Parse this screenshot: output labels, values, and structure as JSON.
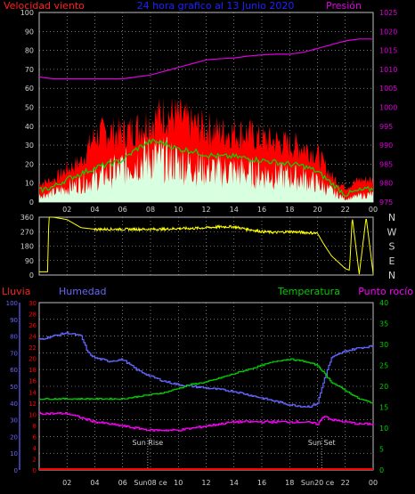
{
  "header": {
    "left_title": "Velocidad viento",
    "center_title": "24 hora grafico al 13 Junio 2020",
    "right_title": "Presión"
  },
  "colors": {
    "background": "#000000",
    "grid": "#c0c0c0",
    "wind_gust": "#ff0000",
    "wind_avg": "#00dd00",
    "wind_speed": "#d8ffe0",
    "pressure": "#dd00dd",
    "direction": "#ffff00",
    "rain": "#ff0000",
    "humidity": "#6666ff",
    "temperature": "#00cc00",
    "dewpoint": "#ff00ff",
    "wind_label": "#ff2020",
    "title_blue": "#2020ff",
    "axis_text": "#d0d0d0"
  },
  "x_ticks": [
    "02",
    "04",
    "06",
    "08",
    "10",
    "12",
    "14",
    "16",
    "18",
    "20",
    "22",
    "00"
  ],
  "panel2": {
    "compass": [
      "N",
      "W",
      "S",
      "E",
      "N"
    ]
  },
  "panel3": {
    "rain_label": "Lluvia",
    "humidity_label": "Humedad",
    "temperature_label": "Temperatura",
    "dewpoint_label": "Punto rocío",
    "sunrise_label": "Sun Rise",
    "sunset_label": "Sun Set",
    "sunrise_tick_label": "Sun08 ce",
    "sunset_tick_label": "Sun20 ce"
  },
  "chart_data": [
    {
      "type": "line",
      "title": "24 hora grafico al 13 Junio 2020",
      "x_unit": "hours (24h window ending 00:00)",
      "y_left": {
        "label": "Velocidad viento",
        "ticks": [
          0,
          10,
          20,
          30,
          40,
          50,
          60,
          70,
          80,
          90,
          100
        ],
        "ylim": [
          0,
          100
        ]
      },
      "y_right": {
        "label": "Presión",
        "ticks": [
          975,
          980,
          985,
          990,
          995,
          1000,
          1005,
          1010,
          1015,
          1020,
          1025
        ],
        "ylim": [
          975,
          1025
        ]
      },
      "series": [
        {
          "key": "gust",
          "axis": "left",
          "x": [
            0,
            1,
            2,
            3,
            4,
            5,
            6,
            7,
            8,
            9,
            10,
            11,
            12,
            13,
            14,
            15,
            16,
            17,
            18,
            19,
            20,
            21,
            22,
            23,
            24
          ],
          "values": [
            10,
            12,
            18,
            22,
            36,
            38,
            37,
            40,
            44,
            48,
            46,
            42,
            40,
            38,
            38,
            37,
            34,
            33,
            31,
            30,
            26,
            14,
            8,
            12,
            12
          ]
        },
        {
          "key": "average",
          "axis": "left",
          "x": [
            0,
            1,
            2,
            3,
            4,
            5,
            6,
            7,
            8,
            9,
            10,
            11,
            12,
            13,
            14,
            15,
            16,
            17,
            18,
            19,
            20,
            21,
            22,
            23,
            24
          ],
          "values": [
            6,
            8,
            12,
            15,
            18,
            20,
            22,
            28,
            32,
            31,
            28,
            27,
            25,
            24,
            24,
            23,
            22,
            21,
            20,
            19,
            16,
            10,
            4,
            6,
            7
          ]
        },
        {
          "key": "speed",
          "axis": "left",
          "x": [
            0,
            1,
            2,
            3,
            4,
            5,
            6,
            7,
            8,
            9,
            10,
            11,
            12,
            13,
            14,
            15,
            16,
            17,
            18,
            19,
            20,
            21,
            22,
            23,
            24
          ],
          "values": [
            4,
            6,
            9,
            12,
            15,
            18,
            22,
            26,
            29,
            27,
            25,
            23,
            21,
            20,
            20,
            19,
            18,
            17,
            16,
            15,
            12,
            7,
            2,
            4,
            5
          ]
        },
        {
          "key": "pressure",
          "axis": "right",
          "x": [
            0,
            1,
            2,
            3,
            4,
            5,
            6,
            7,
            8,
            9,
            10,
            11,
            12,
            13,
            14,
            15,
            16,
            17,
            18,
            19,
            20,
            21,
            22,
            23,
            24
          ],
          "values": [
            1008,
            1007.5,
            1007.5,
            1007.5,
            1007.5,
            1007.5,
            1007.5,
            1008,
            1008.5,
            1009.5,
            1010.5,
            1011.5,
            1012.5,
            1012.8,
            1013,
            1013.5,
            1013.8,
            1014,
            1014,
            1014.5,
            1015.5,
            1016.5,
            1017.5,
            1018,
            1018
          ]
        }
      ]
    },
    {
      "type": "line",
      "y_left": {
        "ticks": [
          0,
          90,
          180,
          270,
          360
        ],
        "ylim": [
          0,
          360
        ]
      },
      "series": [
        {
          "key": "direction",
          "x": [
            0,
            0.6,
            0.7,
            1,
            2,
            3,
            4,
            5,
            6,
            7,
            8,
            9,
            10,
            11,
            12,
            13,
            14,
            15,
            16,
            17,
            18,
            19,
            20,
            20.4,
            21,
            22,
            22.3,
            22.5,
            23,
            23.5,
            24
          ],
          "values": [
            20,
            20,
            360,
            360,
            345,
            295,
            285,
            285,
            285,
            285,
            285,
            285,
            290,
            290,
            295,
            300,
            300,
            285,
            270,
            265,
            270,
            265,
            260,
            200,
            120,
            40,
            30,
            360,
            5,
            360,
            10
          ]
        }
      ]
    },
    {
      "type": "line",
      "axes": {
        "rain": {
          "label": "Lluvia",
          "ticks": [
            0,
            2,
            4,
            6,
            8,
            10,
            12,
            14,
            16,
            18,
            20,
            22,
            24,
            26,
            28,
            30
          ],
          "ylim": [
            0,
            30
          ]
        },
        "humidity": {
          "label": "Humedad",
          "ticks": [
            0,
            10,
            20,
            30,
            40,
            50,
            60,
            70,
            80,
            90,
            100
          ],
          "ylim": [
            0,
            100
          ]
        },
        "temperature": {
          "label": "Temperatura",
          "ticks": [
            0,
            5,
            10,
            15,
            20,
            25,
            30,
            35,
            40
          ],
          "ylim": [
            0,
            40
          ]
        }
      },
      "series": [
        {
          "key": "rain",
          "axis": "rain",
          "x": [
            0,
            24
          ],
          "values": [
            0,
            0
          ]
        },
        {
          "key": "humidity",
          "axis": "humidity",
          "x": [
            0,
            1,
            2,
            3,
            3.5,
            4,
            5,
            6,
            7,
            8,
            9,
            10,
            11,
            12,
            13,
            14,
            15,
            16,
            17,
            18,
            19,
            19.5,
            20,
            20.5,
            21,
            22,
            23,
            24
          ],
          "values": [
            78,
            80,
            82,
            80,
            70,
            67,
            65,
            66,
            60,
            56,
            53,
            51,
            50,
            49,
            48,
            47,
            45,
            43,
            41,
            39,
            38,
            38,
            40,
            55,
            67,
            71,
            73,
            74
          ]
        },
        {
          "key": "temperature",
          "axis": "temperature",
          "x": [
            0,
            1,
            2,
            3,
            4,
            5,
            6,
            7,
            8,
            9,
            10,
            11,
            12,
            13,
            14,
            15,
            16,
            17,
            18,
            19,
            20,
            21,
            22,
            23,
            24
          ],
          "values": [
            17,
            17,
            17,
            17,
            17,
            17,
            17,
            17.5,
            18,
            18.5,
            19.5,
            20.5,
            21,
            22,
            23,
            24,
            25,
            26,
            26.5,
            26,
            25,
            21,
            19,
            17,
            16
          ]
        },
        {
          "key": "dewpoint",
          "axis": "temperature",
          "x": [
            0,
            1,
            2,
            3,
            4,
            5,
            6,
            7,
            8,
            9,
            10,
            11,
            12,
            13,
            14,
            15,
            16,
            17,
            18,
            19,
            20,
            20.5,
            21,
            22,
            23,
            24
          ],
          "values": [
            13.5,
            13.5,
            13.5,
            12.5,
            11.5,
            11,
            10.5,
            10,
            9.5,
            9.5,
            9.5,
            10,
            10.5,
            11,
            11.5,
            11.5,
            11.5,
            11.5,
            11.5,
            11.5,
            11,
            13,
            12,
            11.5,
            11,
            11
          ]
        }
      ],
      "markers": [
        {
          "x": 7.8,
          "label": "Sun Rise"
        },
        {
          "x": 20.3,
          "label": "Sun Set"
        }
      ]
    }
  ]
}
